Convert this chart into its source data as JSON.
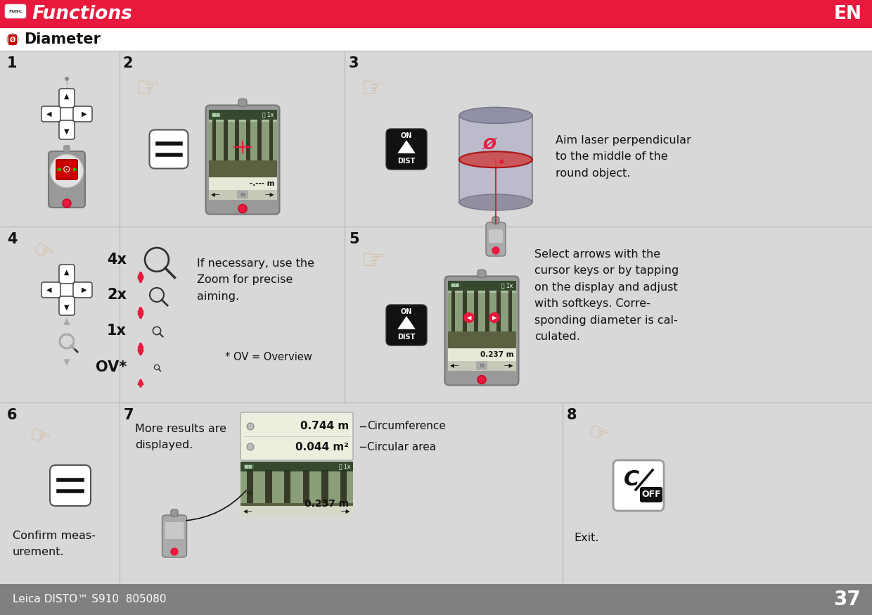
{
  "title_bar_color": "#E8193C",
  "title_text": "Functions",
  "subtitle_text": "Diameter",
  "white": "#FFFFFF",
  "red": "#E8193C",
  "black": "#111111",
  "dark_gray": "#555555",
  "med_gray": "#888888",
  "light_gray": "#CCCCCC",
  "bg_color": "#D8D8D8",
  "footer_bg": "#808080",
  "footer_text": "Leica DISTO™ S910  805080",
  "footer_page": "37",
  "footer_text_color": "#FFFFFF",
  "step3_text": "Aim laser perpendicular\nto the middle of the\nround object.",
  "step4_zoom_text": "If necessary, use the\nZoom for precise\naiming.",
  "step4_ov_text": "* OV = Overview",
  "step4_zoom_levels": [
    "4x",
    "2x",
    "1x",
    "OV*"
  ],
  "step5_text": "Select arrows with the\ncursor keys or by tapping\non the display and adjust\nwith softkeys. Corre-\nsponding diameter is cal-\nculated.",
  "step5_measurement": "0.237 m",
  "step6_text": "Confirm meas-\nurement.",
  "step7_text": "More results are\ndisplayed.",
  "step7_circumference": "0.744 m",
  "step7_area": "0.044 m²",
  "step7_measurement": "0.237 m",
  "step7_label1": "Circumference",
  "step7_label2": "Circular area",
  "step8_text": "Exit.",
  "display_dashes": "-.--- m"
}
